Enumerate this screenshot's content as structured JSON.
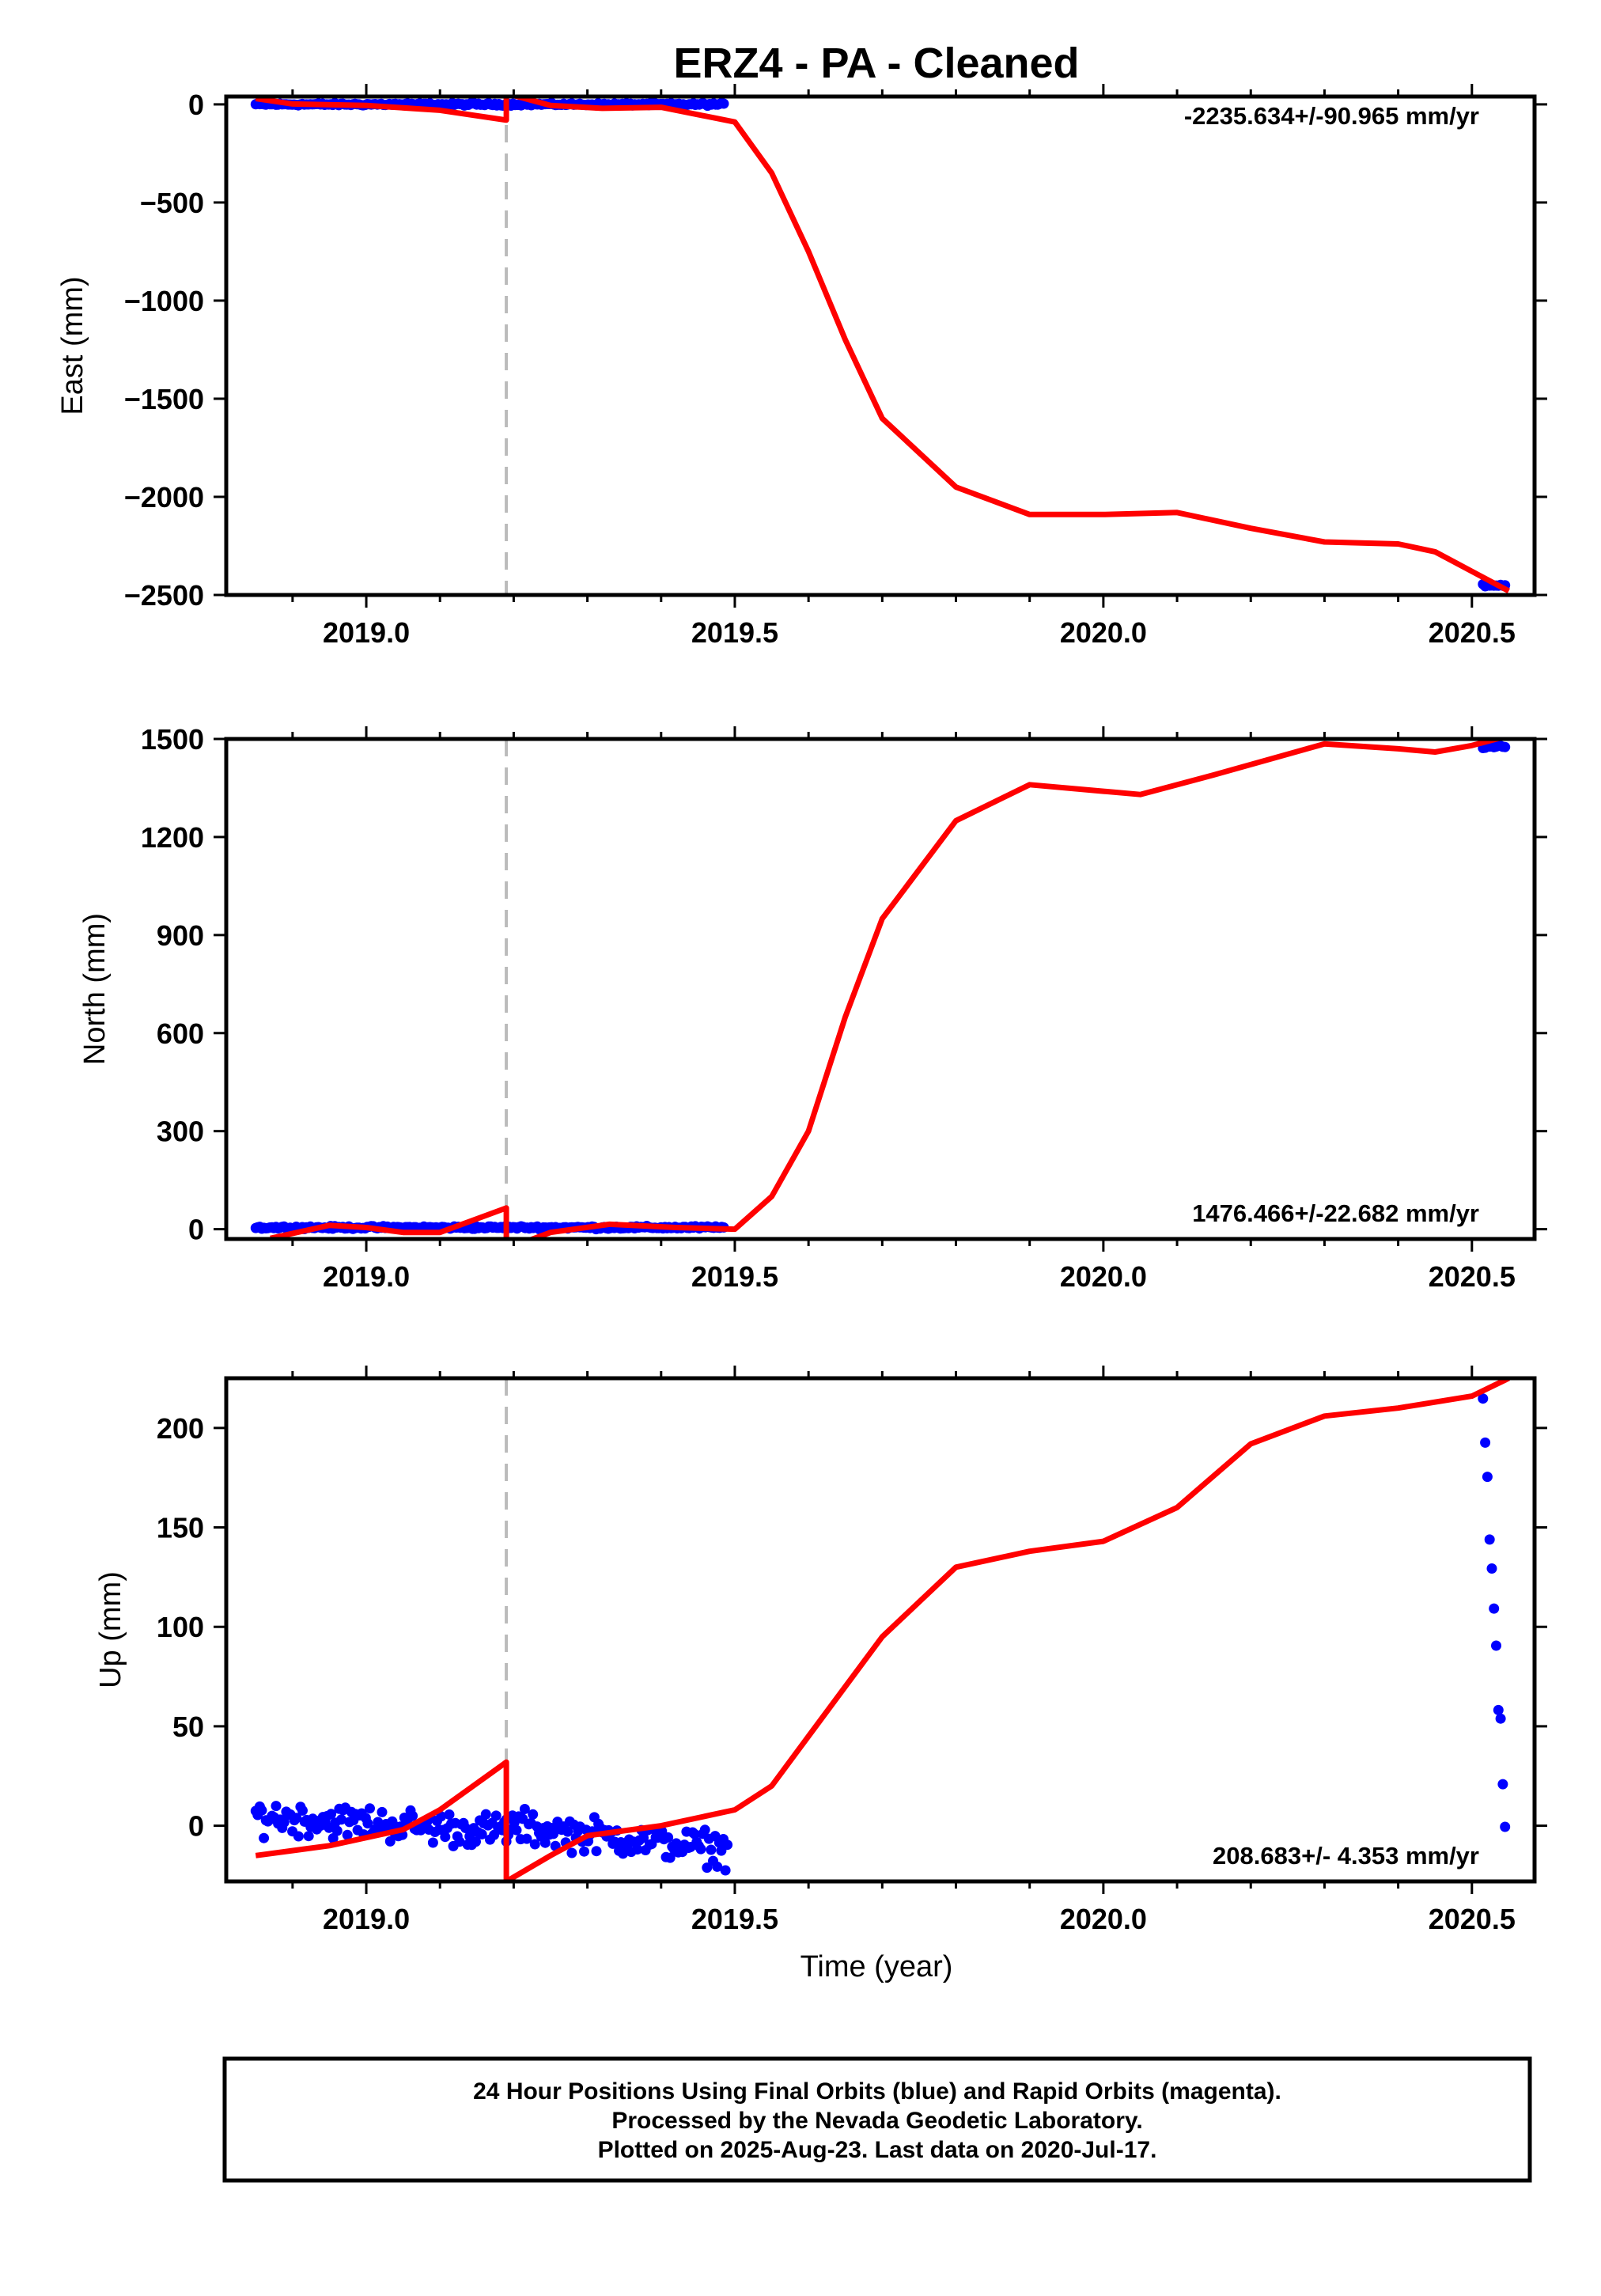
{
  "title": "ERZ4  - PA - Cleaned",
  "colors": {
    "final_orbits": "#0000ff",
    "fit_line": "#ff0000",
    "offset_line": "#bbbbbb",
    "frame": "#000000"
  },
  "footer": {
    "line1": "24 Hour Positions Using Final Orbits (blue) and Rapid Orbits (magenta).",
    "line2": "Processed by the Nevada Geodetic Laboratory.",
    "line3": "Plotted on 2025-Aug-23. Last data on 2020-Jul-17."
  },
  "chart_data": [
    {
      "type": "scatter",
      "name": "east",
      "ylabel": "East (mm)",
      "xlabel": "",
      "rate_label": "-2235.634+/-90.965 mm/yr",
      "rate_position": "top-right",
      "xlim": [
        2018.81,
        2020.585
      ],
      "ylim": [
        -2500,
        40
      ],
      "xticks": [
        "2019.0",
        "2019.5",
        "2020.0",
        "2020.5"
      ],
      "yticks": [
        "0",
        "−500",
        "−1000",
        "−1500",
        "−2000",
        "−2500"
      ],
      "offset_epoch": 2019.19,
      "points": {
        "segments": [
          [
            2018.85,
            2019.485,
            0
          ],
          [
            2020.515,
            2020.545,
            -2450
          ]
        ],
        "scatter_mm": 4
      },
      "fit_line": [
        [
          2018.85,
          30
        ],
        [
          2018.9,
          2
        ],
        [
          2019.0,
          -5
        ],
        [
          2019.1,
          -30
        ],
        [
          2019.19,
          -80
        ],
        [
          2019.19,
          55
        ],
        [
          2019.25,
          -5
        ],
        [
          2019.32,
          -20
        ],
        [
          2019.4,
          -15
        ],
        [
          2019.5,
          -90
        ],
        [
          2019.55,
          -350
        ],
        [
          2019.6,
          -750
        ],
        [
          2019.65,
          -1200
        ],
        [
          2019.7,
          -1600
        ],
        [
          2019.8,
          -1950
        ],
        [
          2019.9,
          -2090
        ],
        [
          2020.0,
          -2090
        ],
        [
          2020.1,
          -2080
        ],
        [
          2020.2,
          -2160
        ],
        [
          2020.3,
          -2230
        ],
        [
          2020.4,
          -2240
        ],
        [
          2020.45,
          -2280
        ],
        [
          2020.5,
          -2380
        ],
        [
          2020.55,
          -2480
        ]
      ]
    },
    {
      "type": "scatter",
      "name": "north",
      "ylabel": "North (mm)",
      "xlabel": "",
      "rate_label": "1476.466+/-22.682 mm/yr",
      "rate_position": "bottom-right",
      "xlim": [
        2018.81,
        2020.585
      ],
      "ylim": [
        -30,
        1500
      ],
      "xticks": [
        "2019.0",
        "2019.5",
        "2020.0",
        "2020.5"
      ],
      "yticks": [
        "0",
        "300",
        "600",
        "900",
        "1200",
        "1500"
      ],
      "offset_epoch": 2019.19,
      "points": {
        "segments": [
          [
            2018.85,
            2019.485,
            5
          ],
          [
            2020.515,
            2020.545,
            1476
          ]
        ],
        "scatter_mm": 3
      },
      "fit_line": [
        [
          2018.87,
          -28
        ],
        [
          2018.95,
          12
        ],
        [
          2019.0,
          5
        ],
        [
          2019.05,
          -10
        ],
        [
          2019.1,
          -10
        ],
        [
          2019.19,
          65
        ],
        [
          2019.19,
          -60
        ],
        [
          2019.25,
          -10
        ],
        [
          2019.33,
          15
        ],
        [
          2019.42,
          5
        ],
        [
          2019.5,
          0
        ],
        [
          2019.55,
          100
        ],
        [
          2019.6,
          300
        ],
        [
          2019.65,
          650
        ],
        [
          2019.7,
          950
        ],
        [
          2019.8,
          1250
        ],
        [
          2019.9,
          1360
        ],
        [
          2020.0,
          1340
        ],
        [
          2020.05,
          1330
        ],
        [
          2020.15,
          1390
        ],
        [
          2020.3,
          1485
        ],
        [
          2020.4,
          1470
        ],
        [
          2020.45,
          1460
        ],
        [
          2020.5,
          1480
        ],
        [
          2020.55,
          1510
        ]
      ]
    },
    {
      "type": "scatter",
      "name": "up",
      "ylabel": "Up (mm)",
      "xlabel": "Time (year)",
      "rate_label": "208.683+/- 4.353 mm/yr",
      "rate_position": "bottom-right",
      "xlim": [
        2018.81,
        2020.585
      ],
      "ylim": [
        -28,
        225
      ],
      "xticks": [
        "2019.0",
        "2019.5",
        "2020.0",
        "2020.5"
      ],
      "yticks": [
        "0",
        "50",
        "100",
        "150",
        "200"
      ],
      "offset_epoch": 2019.19,
      "points": {
        "segments": [
          [
            2018.85,
            2019.19,
            5,
            -3
          ],
          [
            2019.19,
            2019.49,
            0,
            -12
          ],
          [
            2020.515,
            2020.545,
            215,
            0
          ]
        ],
        "scatter_mm": 6
      },
      "fit_line": [
        [
          2018.85,
          -15
        ],
        [
          2018.95,
          -10
        ],
        [
          2019.05,
          -2
        ],
        [
          2019.1,
          8
        ],
        [
          2019.19,
          32
        ],
        [
          2019.19,
          -28
        ],
        [
          2019.25,
          -15
        ],
        [
          2019.3,
          -5
        ],
        [
          2019.4,
          0
        ],
        [
          2019.5,
          8
        ],
        [
          2019.55,
          20
        ],
        [
          2019.6,
          45
        ],
        [
          2019.7,
          95
        ],
        [
          2019.8,
          130
        ],
        [
          2019.9,
          138
        ],
        [
          2020.0,
          143
        ],
        [
          2020.1,
          160
        ],
        [
          2020.2,
          192
        ],
        [
          2020.3,
          206
        ],
        [
          2020.4,
          210
        ],
        [
          2020.5,
          216
        ],
        [
          2020.55,
          225
        ]
      ]
    }
  ]
}
